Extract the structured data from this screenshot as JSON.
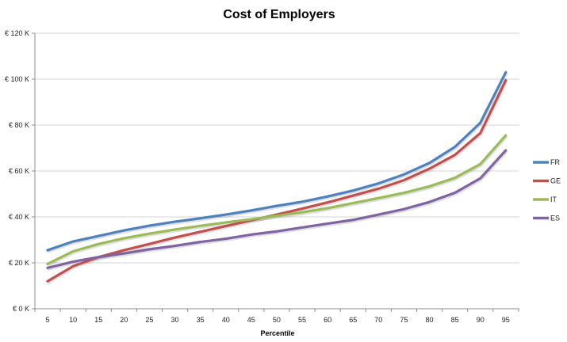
{
  "chart_data": {
    "type": "line",
    "title": "Cost of Employers",
    "xlabel": "Percentile",
    "ylabel": "",
    "x": [
      5,
      10,
      15,
      20,
      25,
      30,
      35,
      40,
      45,
      50,
      55,
      60,
      65,
      70,
      75,
      80,
      85,
      90,
      95
    ],
    "x_tick_labels": [
      "5",
      "10",
      "15",
      "20",
      "25",
      "30",
      "35",
      "40",
      "45",
      "50",
      "55",
      "60",
      "65",
      "70",
      "75",
      "80",
      "85",
      "90",
      "95"
    ],
    "ylim": [
      0,
      120000
    ],
    "y_ticks": [
      0,
      20000,
      40000,
      60000,
      80000,
      100000,
      120000
    ],
    "y_tick_labels": [
      "€ 0 K",
      "€ 20 K",
      "€ 40 K",
      "€ 60 K",
      "€ 80 K",
      "€ 100 K",
      "€ 120 K"
    ],
    "grid": "horizontal",
    "legend_position": "right",
    "series": [
      {
        "name": "FR",
        "color": "#4f81bd",
        "values": [
          25500,
          29300,
          31700,
          34100,
          36200,
          37900,
          39400,
          41000,
          42800,
          44800,
          46600,
          48900,
          51500,
          54600,
          58500,
          63500,
          70500,
          81000,
          103000
        ]
      },
      {
        "name": "GE",
        "color": "#c0504d",
        "values": [
          12000,
          18500,
          22500,
          25500,
          28200,
          31000,
          33500,
          36000,
          38500,
          41000,
          43600,
          46300,
          49300,
          52300,
          56000,
          61000,
          67000,
          76500,
          99500
        ]
      },
      {
        "name": "IT",
        "color": "#9bbb59",
        "values": [
          19500,
          25000,
          28200,
          30700,
          32700,
          34500,
          36100,
          37600,
          39000,
          40500,
          42000,
          43800,
          46000,
          48200,
          50500,
          53300,
          57000,
          63000,
          75500
        ]
      },
      {
        "name": "ES",
        "color": "#8064a2",
        "values": [
          17800,
          20500,
          22500,
          24100,
          25900,
          27400,
          29100,
          30500,
          32300,
          33700,
          35400,
          37100,
          38700,
          41000,
          43400,
          46500,
          50500,
          56800,
          69000
        ]
      }
    ]
  }
}
